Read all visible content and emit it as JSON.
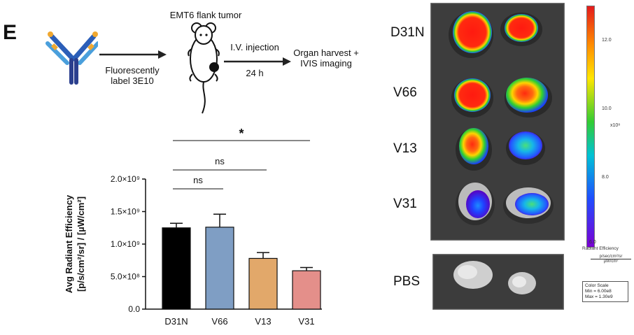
{
  "panel_label": "E",
  "schematic": {
    "antibody_caption_line1": "Fluorescently",
    "antibody_caption_line2": "label 3E10",
    "mouse_title": "EMT6 flank tumor",
    "injection_label": "I.V. injection",
    "time_label": "24 h",
    "outcome_line1": "Organ harvest +",
    "outcome_line2": "IVIS imaging"
  },
  "chart_data": {
    "type": "bar",
    "categories": [
      "D31N",
      "V66",
      "V13",
      "V31"
    ],
    "values": [
      1250000000,
      1260000000,
      780000000,
      590000000
    ],
    "errors": [
      70000000,
      200000000,
      90000000,
      50000000
    ],
    "value_unit": "p/s/cm²/sr per µW/cm²",
    "colors": [
      "#000000",
      "#7f9ec4",
      "#e2a86a",
      "#e48f8a"
    ],
    "ylim": [
      0,
      2000000000
    ],
    "ytick_values": [
      0,
      500000000,
      1000000000,
      1500000000,
      2000000000
    ],
    "ytick_labels": [
      "0.0",
      "5.0×10⁸",
      "1.0×10⁹",
      "1.5×10⁹",
      "2.0×10⁹"
    ],
    "ylabel_line1": "Avg Radiant Efficiency",
    "ylabel_line2": "[p/s/cm²/sr] / [µW/cm²]",
    "xlabel": "",
    "title": "",
    "significance": [
      {
        "from": "D31N",
        "to": "V66",
        "label": "ns"
      },
      {
        "from": "D31N",
        "to": "V13",
        "label": "ns"
      },
      {
        "from": "D31N",
        "to": "V31",
        "label": "*"
      }
    ]
  },
  "imaging": {
    "row_labels": [
      "D31N",
      "V66",
      "V13",
      "V31"
    ],
    "pbs_label": "PBS",
    "colorbar": {
      "tick_labels": [
        "12.0",
        "10.0",
        "8.0",
        "6.0"
      ],
      "multiplier": "x10⁸",
      "title": "Radiant Efficiency",
      "unit_numerator": "p/sec/cm²/sr",
      "unit_denominator": "µW/cm²",
      "scale_title": "Color Scale",
      "scale_min": "Min = 6.00e8",
      "scale_max": "Max = 1.30e9",
      "colors": {
        "top": "#e41a1c",
        "mid": "#33cc33",
        "bottom": "#7b00d4"
      }
    }
  }
}
